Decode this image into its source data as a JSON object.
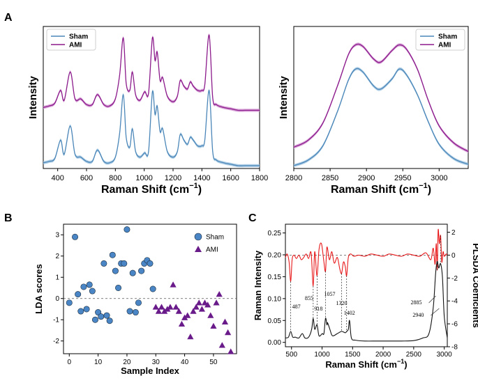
{
  "figure": {
    "panel_labels": [
      "A",
      "B",
      "C"
    ]
  },
  "colors": {
    "sham": "#4a86b8",
    "ami": "#8b1a8b",
    "sham_band": "#9dc3e0",
    "ami_band": "#cf8fcf",
    "sham_marker": "#4a86c6",
    "ami_marker": "#6a1b8a",
    "coef": "#e8191b",
    "intensity": "#111111"
  },
  "chart_data": [
    {
      "id": "A-left",
      "type": "line",
      "xlabel": "Raman Shift (cm",
      "xlabel_sup": "−1",
      "xlabel_close": ")",
      "ylabel": "Intensity",
      "xlim": [
        300,
        1800
      ],
      "xticks": [
        400,
        600,
        800,
        1000,
        1200,
        1400,
        1600,
        1800
      ],
      "y_ticks_shown": false,
      "legend": {
        "position": "top-left",
        "entries": [
          "Sham",
          "AMI"
        ]
      },
      "peaks_cm1": [
        420,
        487,
        560,
        676,
        855,
        918,
        1003,
        1057,
        1090,
        1128,
        1250,
        1320,
        1340,
        1450
      ],
      "series": [
        {
          "name": "Sham",
          "x": [
            300,
            340,
            380,
            420,
            445,
            487,
            520,
            560,
            600,
            640,
            676,
            720,
            760,
            800,
            830,
            855,
            875,
            900,
            918,
            940,
            970,
            1003,
            1030,
            1057,
            1075,
            1090,
            1110,
            1128,
            1160,
            1200,
            1230,
            1250,
            1275,
            1300,
            1320,
            1340,
            1370,
            1400,
            1420,
            1450,
            1475,
            1500,
            1550,
            1600,
            1650,
            1700,
            1750,
            1800
          ],
          "y": [
            0.04,
            0.05,
            0.07,
            0.2,
            0.1,
            0.3,
            0.1,
            0.08,
            0.05,
            0.05,
            0.13,
            0.05,
            0.04,
            0.08,
            0.25,
            0.52,
            0.22,
            0.15,
            0.28,
            0.12,
            0.08,
            0.11,
            0.12,
            0.54,
            0.38,
            0.44,
            0.26,
            0.28,
            0.12,
            0.08,
            0.12,
            0.24,
            0.2,
            0.17,
            0.22,
            0.2,
            0.16,
            0.16,
            0.2,
            0.55,
            0.12,
            0.06,
            0.04,
            0.03,
            0.02,
            0.02,
            0.02,
            0.02
          ]
        },
        {
          "name": "AMI",
          "x": [
            300,
            340,
            380,
            420,
            445,
            487,
            520,
            560,
            600,
            640,
            676,
            720,
            760,
            800,
            830,
            855,
            875,
            900,
            918,
            940,
            970,
            1003,
            1030,
            1057,
            1075,
            1090,
            1110,
            1128,
            1160,
            1200,
            1230,
            1250,
            1275,
            1300,
            1320,
            1340,
            1370,
            1400,
            1420,
            1450,
            1475,
            1500,
            1550,
            1600,
            1650,
            1700,
            1750,
            1800
          ],
          "y": [
            0.43,
            0.44,
            0.46,
            0.55,
            0.48,
            0.68,
            0.49,
            0.49,
            0.45,
            0.45,
            0.52,
            0.45,
            0.44,
            0.49,
            0.66,
            0.92,
            0.6,
            0.55,
            0.68,
            0.52,
            0.48,
            0.54,
            0.53,
            0.92,
            0.76,
            0.82,
            0.62,
            0.64,
            0.51,
            0.47,
            0.51,
            0.62,
            0.58,
            0.56,
            0.61,
            0.58,
            0.55,
            0.55,
            0.59,
            0.94,
            0.5,
            0.45,
            0.43,
            0.42,
            0.41,
            0.41,
            0.41,
            0.41
          ]
        }
      ]
    },
    {
      "id": "A-right",
      "type": "line",
      "xlabel": "Raman Shift (cm",
      "xlabel_sup": "−1",
      "xlabel_close": ")",
      "ylabel": "Intensity",
      "xlim": [
        2800,
        3040
      ],
      "xticks": [
        2800,
        2850,
        2900,
        2950,
        3000
      ],
      "y_ticks_shown": false,
      "legend": {
        "position": "top-right",
        "entries": [
          "Sham",
          "AMI"
        ]
      },
      "series": [
        {
          "name": "Sham",
          "x": [
            2800,
            2820,
            2840,
            2860,
            2875,
            2885,
            2895,
            2910,
            2920,
            2935,
            2945,
            2955,
            2970,
            2985,
            3000,
            3020,
            3040
          ],
          "y": [
            0.02,
            0.06,
            0.16,
            0.4,
            0.62,
            0.7,
            0.68,
            0.58,
            0.56,
            0.63,
            0.7,
            0.66,
            0.52,
            0.33,
            0.17,
            0.07,
            0.03
          ]
        },
        {
          "name": "AMI",
          "x": [
            2800,
            2820,
            2840,
            2860,
            2875,
            2885,
            2895,
            2910,
            2920,
            2935,
            2945,
            2955,
            2970,
            2985,
            3000,
            3020,
            3040
          ],
          "y": [
            0.15,
            0.2,
            0.32,
            0.58,
            0.8,
            0.87,
            0.86,
            0.77,
            0.75,
            0.83,
            0.87,
            0.84,
            0.7,
            0.48,
            0.3,
            0.18,
            0.12
          ]
        }
      ]
    },
    {
      "id": "B",
      "type": "scatter",
      "xlabel": "Sample Index",
      "ylabel": "LDA scores",
      "xlim": [
        -2,
        58
      ],
      "ylim": [
        -2.6,
        3.5
      ],
      "xticks": [
        0,
        10,
        20,
        30,
        40,
        50
      ],
      "yticks": [
        -2,
        -1,
        0,
        1,
        2,
        3
      ],
      "hline": 0,
      "legend": {
        "position": "top-right",
        "entries": [
          "Sham",
          "AMI"
        ]
      },
      "series": [
        {
          "name": "Sham",
          "marker": "circle",
          "x": [
            0,
            2,
            3,
            4,
            5,
            6,
            7,
            8,
            9,
            10,
            11,
            12,
            13,
            14,
            15,
            16,
            17,
            18,
            19,
            20,
            21,
            22,
            23,
            24,
            25,
            26,
            27,
            28,
            29
          ],
          "y": [
            -0.2,
            2.9,
            0.2,
            -0.6,
            0.55,
            -0.5,
            0.65,
            0.35,
            -1.0,
            -0.65,
            -0.85,
            1.65,
            -0.8,
            -1.05,
            2.05,
            1.3,
            0.5,
            1.65,
            1.65,
            3.25,
            -0.6,
            1.2,
            -0.65,
            -0.2,
            1.3,
            1.65,
            1.8,
            1.65,
            0.45
          ]
        },
        {
          "name": "AMI",
          "marker": "triangle",
          "x": [
            30,
            31,
            32,
            33,
            34,
            35,
            36,
            37,
            38,
            39,
            40,
            41,
            42,
            43,
            44,
            45,
            46,
            47,
            48,
            49,
            50,
            51,
            52,
            53,
            54,
            55,
            56
          ],
          "y": [
            -0.4,
            -0.6,
            -0.4,
            -0.6,
            -0.5,
            -0.4,
            0.65,
            -0.4,
            -0.6,
            -1.2,
            -0.9,
            -0.8,
            -1.8,
            -0.6,
            -0.4,
            -0.2,
            -0.5,
            -0.2,
            -0.3,
            -0.8,
            -1.3,
            -0.2,
            0.2,
            -2.2,
            -1.1,
            -1.6,
            -2.5
          ]
        }
      ]
    },
    {
      "id": "C",
      "type": "line",
      "xlabel": "Raman Shift (cm",
      "xlabel_sup": "−1",
      "xlabel_close": ")",
      "ylabel": "Raman Intensity",
      "y2label": "PLSDA Coefficients",
      "xlim": [
        400,
        3050
      ],
      "xticks": [
        500,
        1000,
        1500,
        2000,
        2500,
        3000
      ],
      "ylim": [
        -0.01,
        0.27
      ],
      "yticks": [
        0.0,
        0.05,
        0.1,
        0.15,
        0.2,
        0.25
      ],
      "y2lim": [
        -8,
        2.7
      ],
      "y2ticks": [
        -8,
        -6,
        -4,
        -2,
        0,
        2
      ],
      "hline_y2": 0,
      "annotations": [
        {
          "text": "487",
          "peak": 487
        },
        {
          "text": "855",
          "peak": 855
        },
        {
          "text": "918",
          "peak": 918
        },
        {
          "text": "1057",
          "peak": 1057
        },
        {
          "text": "1320",
          "peak": 1320
        },
        {
          "text": "1402",
          "peak": 1402
        },
        {
          "text": "2885",
          "peak": 2885
        },
        {
          "text": "2940",
          "peak": 2940
        }
      ],
      "series": [
        {
          "name": "Raman Intensity",
          "axis": "left",
          "x": [
            400,
            450,
            487,
            520,
            560,
            620,
            676,
            720,
            780,
            830,
            855,
            880,
            918,
            950,
            1003,
            1030,
            1057,
            1080,
            1090,
            1128,
            1170,
            1250,
            1320,
            1380,
            1402,
            1430,
            1450,
            1480,
            1550,
            1700,
            1900,
            2100,
            2300,
            2500,
            2650,
            2750,
            2820,
            2860,
            2885,
            2910,
            2940,
            2970,
            3000,
            3050
          ],
          "y": [
            0.01,
            0.012,
            0.025,
            0.012,
            0.012,
            0.01,
            0.02,
            0.01,
            0.012,
            0.03,
            0.055,
            0.03,
            0.04,
            0.015,
            0.02,
            0.02,
            0.055,
            0.04,
            0.045,
            0.03,
            0.015,
            0.02,
            0.025,
            0.022,
            0.025,
            0.03,
            0.05,
            0.01,
            0.005,
            0.003,
            0.003,
            0.003,
            0.003,
            0.004,
            0.01,
            0.02,
            0.08,
            0.16,
            0.185,
            0.17,
            0.18,
            0.15,
            0.06,
            0.01
          ]
        },
        {
          "name": "PLSDA Coefficients",
          "axis": "right",
          "x": [
            400,
            430,
            460,
            487,
            510,
            540,
            580,
            620,
            660,
            700,
            740,
            780,
            820,
            855,
            880,
            918,
            950,
            990,
            1030,
            1057,
            1080,
            1120,
            1160,
            1200,
            1250,
            1290,
            1320,
            1350,
            1380,
            1402,
            1430,
            1470,
            1520,
            1600,
            1700,
            1800,
            1900,
            2000,
            2100,
            2200,
            2300,
            2400,
            2500,
            2600,
            2700,
            2780,
            2820,
            2850,
            2870,
            2885,
            2900,
            2920,
            2940,
            2960,
            2980,
            3000,
            3030,
            3050
          ],
          "y": [
            -0.2,
            0.1,
            -0.6,
            -2.3,
            -0.4,
            0.0,
            -0.3,
            0.0,
            -0.4,
            -0.2,
            0.1,
            -0.3,
            0.2,
            -2.7,
            0.3,
            -1.8,
            0.5,
            1.0,
            -0.6,
            -1.4,
            0.7,
            -0.4,
            0.3,
            -0.7,
            -0.2,
            -1.2,
            -1.6,
            -0.6,
            -1.0,
            -1.8,
            -0.2,
            0.1,
            -0.1,
            0.0,
            -0.1,
            0.1,
            0.0,
            -0.1,
            0.1,
            0.0,
            -0.1,
            0.1,
            0.0,
            -0.1,
            0.2,
            -0.4,
            0.6,
            -0.8,
            1.0,
            -1.3,
            2.2,
            1.0,
            1.7,
            -0.6,
            0.3,
            -0.1,
            0.1,
            0.0
          ]
        }
      ]
    }
  ]
}
